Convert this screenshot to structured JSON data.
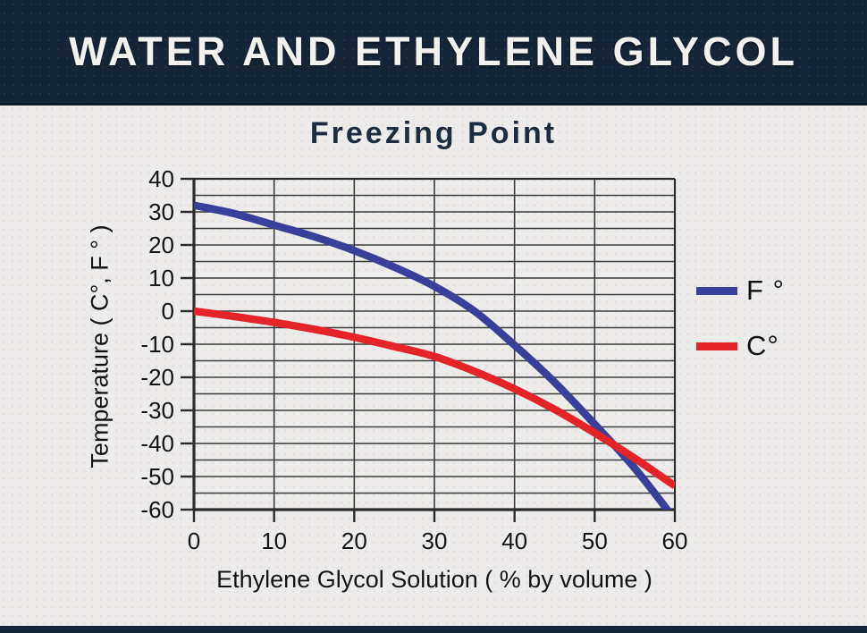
{
  "app": {
    "header_title": "WATER AND ETHYLENE GLYCOL",
    "colors": {
      "header_bg": "#162536",
      "page_bg": "#edeceb",
      "title_text": "#1d2c3e",
      "header_text": "#f3f1ee",
      "grid": "#3b3b3b",
      "axis": "#2b2b2b",
      "series_f": "#3a3f99",
      "series_c": "#e5242a",
      "tick_text": "#141414"
    }
  },
  "chart_data": {
    "type": "line",
    "title": "Freezing Point",
    "xlabel": "Ethylene Glycol Solution ( % by volume )",
    "ylabel": "Temperature ( C°, F ° )",
    "xlim": [
      0,
      60
    ],
    "ylim": [
      -60,
      40
    ],
    "x_ticks": [
      0,
      10,
      20,
      30,
      40,
      50,
      60
    ],
    "y_ticks": [
      40,
      30,
      20,
      10,
      0,
      -10,
      -20,
      -30,
      -40,
      -50,
      -60
    ],
    "x_grid_step": 10,
    "y_grid_step": 5,
    "grid": "on",
    "legend_position": "right",
    "x": [
      0,
      5,
      10,
      15,
      20,
      25,
      30,
      35,
      40,
      45,
      50,
      55,
      60
    ],
    "series": [
      {
        "name": "F °",
        "color": "#3a3f99",
        "values": [
          32,
          29.5,
          26,
          22.5,
          18.3,
          13.3,
          7.5,
          0,
          -10.3,
          -21.5,
          -34.2,
          -47.5,
          -63
        ]
      },
      {
        "name": "C°",
        "color": "#e5242a",
        "values": [
          0,
          -1.6,
          -3.4,
          -5.5,
          -7.9,
          -10.7,
          -13.7,
          -18.2,
          -23.5,
          -29.7,
          -36.8,
          -44.5,
          -52.8
        ]
      }
    ]
  }
}
